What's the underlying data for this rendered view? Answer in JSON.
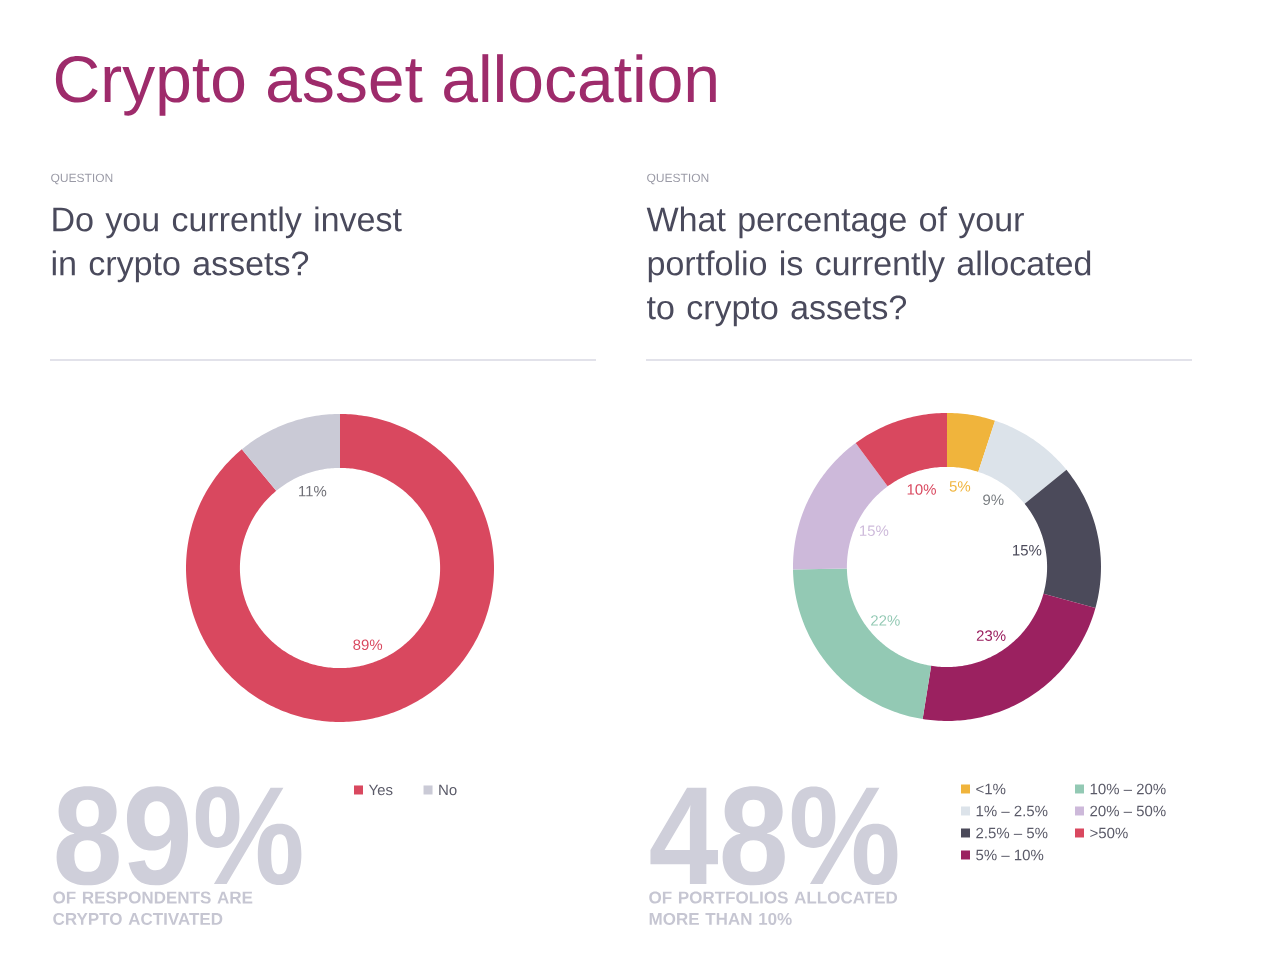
{
  "chart_data": [
    {
      "type": "donut",
      "title": "Crypto asset allocation",
      "subtitle": "Do you currently invest in crypto assets?",
      "categories": [
        "Yes",
        "No"
      ],
      "values": [
        89,
        11
      ],
      "colors": [
        "#d9485f",
        "#cacad6"
      ],
      "value_labels": [
        "89%",
        "11%"
      ],
      "legend": "bottom",
      "annotations": [
        "QUESTION",
        "89%",
        "OF RESPONDENTS ARE CRYPTO ACTIVATED"
      ]
    },
    {
      "type": "donut",
      "subtitle": "What percentage of your portfolio is currently allocated to crypto assets?",
      "categories": [
        "<1%",
        "1% – 2.5%",
        "2.5% – 5%",
        "5% – 10%",
        "10% – 20%",
        "20% – 50%",
        ">50%"
      ],
      "values": [
        5,
        9,
        15,
        23,
        22,
        15,
        10
      ],
      "colors": [
        "#f0b43c",
        "#dce3ea",
        "#4b4a5a",
        "#9b2160",
        "#93c9b4",
        "#cdb9da",
        "#d9485f"
      ],
      "value_labels": [
        "5%",
        "9%",
        "15%",
        "23%",
        "22%",
        "15%",
        "10%"
      ],
      "legend": "bottom",
      "annotations": [
        "QUESTION",
        "48%",
        "OF PORTFOLIOS ALLOCATED MORE THAN 10%"
      ]
    }
  ]
}
